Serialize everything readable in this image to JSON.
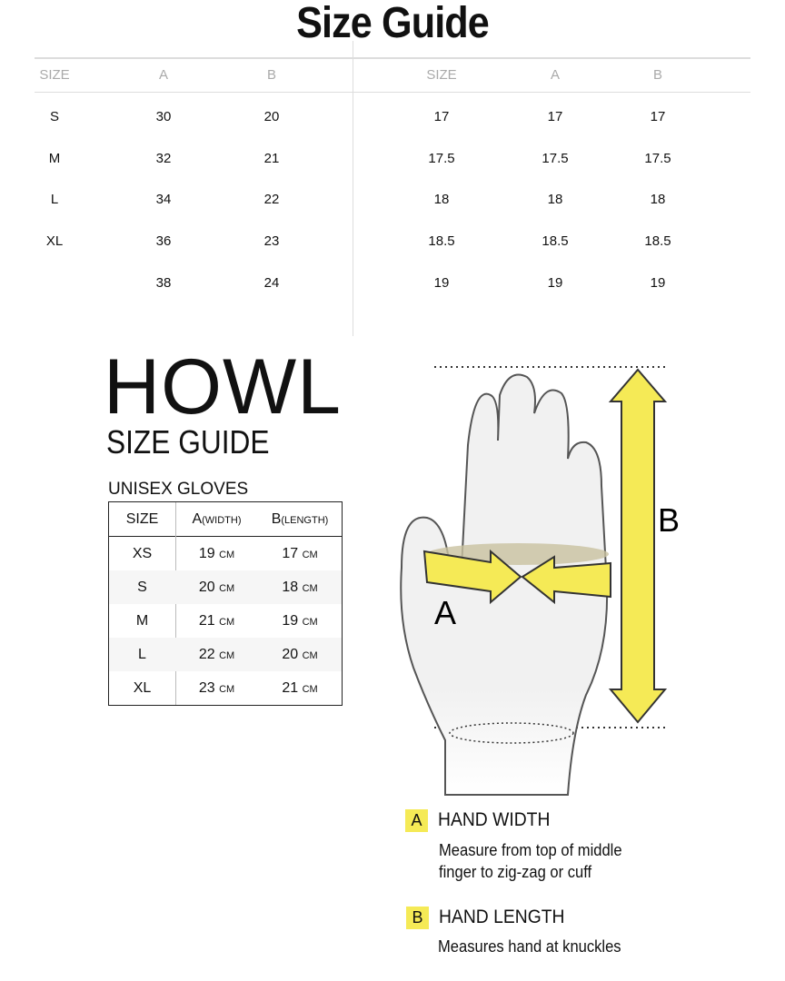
{
  "title": "Size Guide",
  "top_table": {
    "left": {
      "headers": [
        "SIZE",
        "A",
        "B"
      ],
      "rows": [
        [
          "S",
          "30",
          "20"
        ],
        [
          "M",
          "32",
          "21"
        ],
        [
          "L",
          "34",
          "22"
        ],
        [
          "XL",
          "36",
          "23"
        ],
        [
          "",
          "38",
          "24"
        ]
      ]
    },
    "right": {
      "headers": [
        "SIZE",
        "A",
        "B"
      ],
      "rows": [
        [
          "17",
          "17",
          "17"
        ],
        [
          "17.5",
          "17.5",
          "17.5"
        ],
        [
          "18",
          "18",
          "18"
        ],
        [
          "18.5",
          "18.5",
          "18.5"
        ],
        [
          "19",
          "19",
          "19"
        ]
      ]
    }
  },
  "brand": {
    "logo": "HOWL",
    "subtitle": "SIZE GUIDE"
  },
  "gloves_table": {
    "caption": "UNISEX GLOVES",
    "headers": {
      "size": "SIZE",
      "a": "A",
      "a_sub": "(WIDTH)",
      "b": "B",
      "b_sub": "(LENGTH)"
    },
    "unit": "CM",
    "rows": [
      {
        "size": "XS",
        "a": "19",
        "b": "17"
      },
      {
        "size": "S",
        "a": "20",
        "b": "18"
      },
      {
        "size": "M",
        "a": "21",
        "b": "19"
      },
      {
        "size": "L",
        "a": "22",
        "b": "20"
      },
      {
        "size": "XL",
        "a": "23",
        "b": "21"
      }
    ]
  },
  "diagram": {
    "label_a": "A",
    "label_b": "B",
    "accent": "#f5ea56"
  },
  "legend": [
    {
      "key": "A",
      "title": "HAND WIDTH",
      "desc1": "Measure from top of middle",
      "desc2": "finger to zig-zag or cuff"
    },
    {
      "key": "B",
      "title": "HAND LENGTH",
      "desc1": "Measures hand at knuckles"
    }
  ]
}
